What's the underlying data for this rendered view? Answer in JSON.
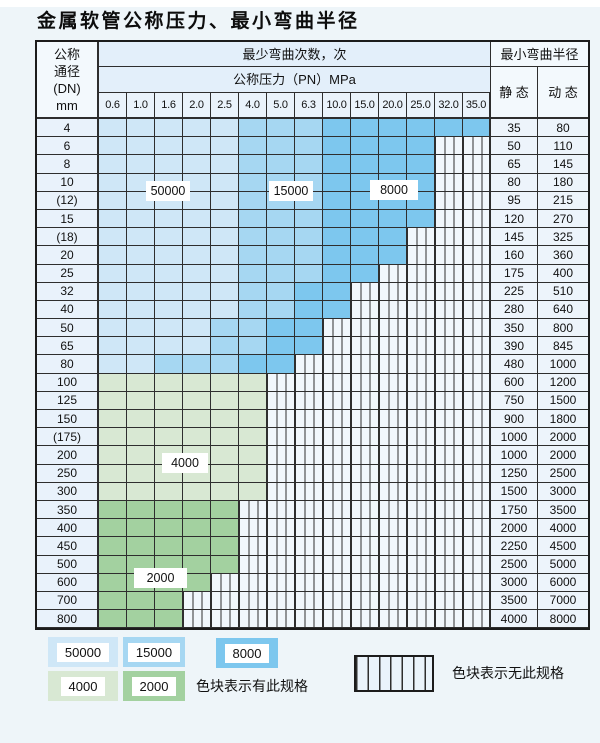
{
  "title": "金属软管公称压力、最小弯曲半径",
  "table": {
    "corner_header": [
      "公称",
      "通径",
      "(DN)",
      "mm"
    ],
    "bend_times_header": "最少弯曲次数，次",
    "pressure_header": "公称压力（PN）MPa",
    "bend_radius_header": "最小弯曲半径",
    "static_header": "静 态",
    "dynamic_header": "动 态",
    "pressures": [
      "0.6",
      "1.0",
      "1.6",
      "2.0",
      "2.5",
      "4.0",
      "5.0",
      "6.3",
      "10.0",
      "15.0",
      "20.0",
      "25.0",
      "32.0",
      "35.0"
    ],
    "rows": [
      {
        "dn": "4",
        "static": "35",
        "dynamic": "80",
        "palette": "blue",
        "colored_through": 13,
        "medium_from": 5,
        "dark_from": 8
      },
      {
        "dn": "6",
        "static": "50",
        "dynamic": "110",
        "palette": "blue",
        "colored_through": 11,
        "medium_from": 5,
        "dark_from": 8
      },
      {
        "dn": "8",
        "static": "65",
        "dynamic": "145",
        "palette": "blue",
        "colored_through": 11,
        "medium_from": 5,
        "dark_from": 8
      },
      {
        "dn": "10",
        "static": "80",
        "dynamic": "180",
        "palette": "blue",
        "colored_through": 11,
        "medium_from": 5,
        "dark_from": 8
      },
      {
        "dn": "(12)",
        "static": "95",
        "dynamic": "215",
        "palette": "blue",
        "colored_through": 11,
        "medium_from": 5,
        "dark_from": 8
      },
      {
        "dn": "15",
        "static": "120",
        "dynamic": "270",
        "palette": "blue",
        "colored_through": 11,
        "medium_from": 5,
        "dark_from": 8
      },
      {
        "dn": "(18)",
        "static": "145",
        "dynamic": "325",
        "palette": "blue",
        "colored_through": 10,
        "medium_from": 5,
        "dark_from": 8
      },
      {
        "dn": "20",
        "static": "160",
        "dynamic": "360",
        "palette": "blue",
        "colored_through": 10,
        "medium_from": 5,
        "dark_from": 8
      },
      {
        "dn": "25",
        "static": "175",
        "dynamic": "400",
        "palette": "blue",
        "colored_through": 9,
        "medium_from": 5,
        "dark_from": 8
      },
      {
        "dn": "32",
        "static": "225",
        "dynamic": "510",
        "palette": "blue",
        "colored_through": 8,
        "medium_from": 5,
        "dark_from": 7
      },
      {
        "dn": "40",
        "static": "280",
        "dynamic": "640",
        "palette": "blue",
        "colored_through": 8,
        "medium_from": 5,
        "dark_from": 7
      },
      {
        "dn": "50",
        "static": "350",
        "dynamic": "800",
        "palette": "blue",
        "colored_through": 7,
        "medium_from": 4,
        "dark_from": 6
      },
      {
        "dn": "65",
        "static": "390",
        "dynamic": "845",
        "palette": "blue",
        "colored_through": 7,
        "medium_from": 4,
        "dark_from": 6
      },
      {
        "dn": "80",
        "static": "480",
        "dynamic": "1000",
        "palette": "blue",
        "colored_through": 6,
        "medium_from": 2,
        "dark_from": 5
      },
      {
        "dn": "100",
        "static": "600",
        "dynamic": "1200",
        "palette": "green4000",
        "colored_through": 5
      },
      {
        "dn": "125",
        "static": "750",
        "dynamic": "1500",
        "palette": "green4000",
        "colored_through": 5
      },
      {
        "dn": "150",
        "static": "900",
        "dynamic": "1800",
        "palette": "green4000",
        "colored_through": 5
      },
      {
        "dn": "(175)",
        "static": "1000",
        "dynamic": "2000",
        "palette": "green4000",
        "colored_through": 5
      },
      {
        "dn": "200",
        "static": "1000",
        "dynamic": "2000",
        "palette": "green4000",
        "colored_through": 5
      },
      {
        "dn": "250",
        "static": "1250",
        "dynamic": "2500",
        "palette": "green4000",
        "colored_through": 5
      },
      {
        "dn": "300",
        "static": "1500",
        "dynamic": "3000",
        "palette": "green4000",
        "colored_through": 5
      },
      {
        "dn": "350",
        "static": "1750",
        "dynamic": "3500",
        "palette": "green2000",
        "colored_through": 4
      },
      {
        "dn": "400",
        "static": "2000",
        "dynamic": "4000",
        "palette": "green2000",
        "colored_through": 4
      },
      {
        "dn": "450",
        "static": "2250",
        "dynamic": "4500",
        "palette": "green2000",
        "colored_through": 4
      },
      {
        "dn": "500",
        "static": "2500",
        "dynamic": "5000",
        "palette": "green2000",
        "colored_through": 4
      },
      {
        "dn": "600",
        "static": "3000",
        "dynamic": "6000",
        "palette": "green2000",
        "colored_through": 3
      },
      {
        "dn": "700",
        "static": "3500",
        "dynamic": "7000",
        "palette": "green2000",
        "colored_through": 2
      },
      {
        "dn": "800",
        "static": "4000",
        "dynamic": "8000",
        "palette": "green2000",
        "colored_through": 2
      }
    ]
  },
  "zone_labels": {
    "blue_50000": "50000",
    "blue_15000": "15000",
    "blue_8000": "8000",
    "green_4000": "4000",
    "green_2000": "2000"
  },
  "legend": {
    "items": [
      {
        "label": "50000",
        "color": "#cfe7f7"
      },
      {
        "label": "15000",
        "color": "#a6d7f2"
      },
      {
        "label": "8000",
        "color": "#7dc7ee"
      },
      {
        "label": "4000",
        "color": "#d8e8d3"
      },
      {
        "label": "2000",
        "color": "#a3d1a0"
      }
    ],
    "has_spec_text": "色块表示有此规格",
    "no_spec_text": "色块表示无此规格",
    "hatch_bg": "#eaf3fb"
  }
}
